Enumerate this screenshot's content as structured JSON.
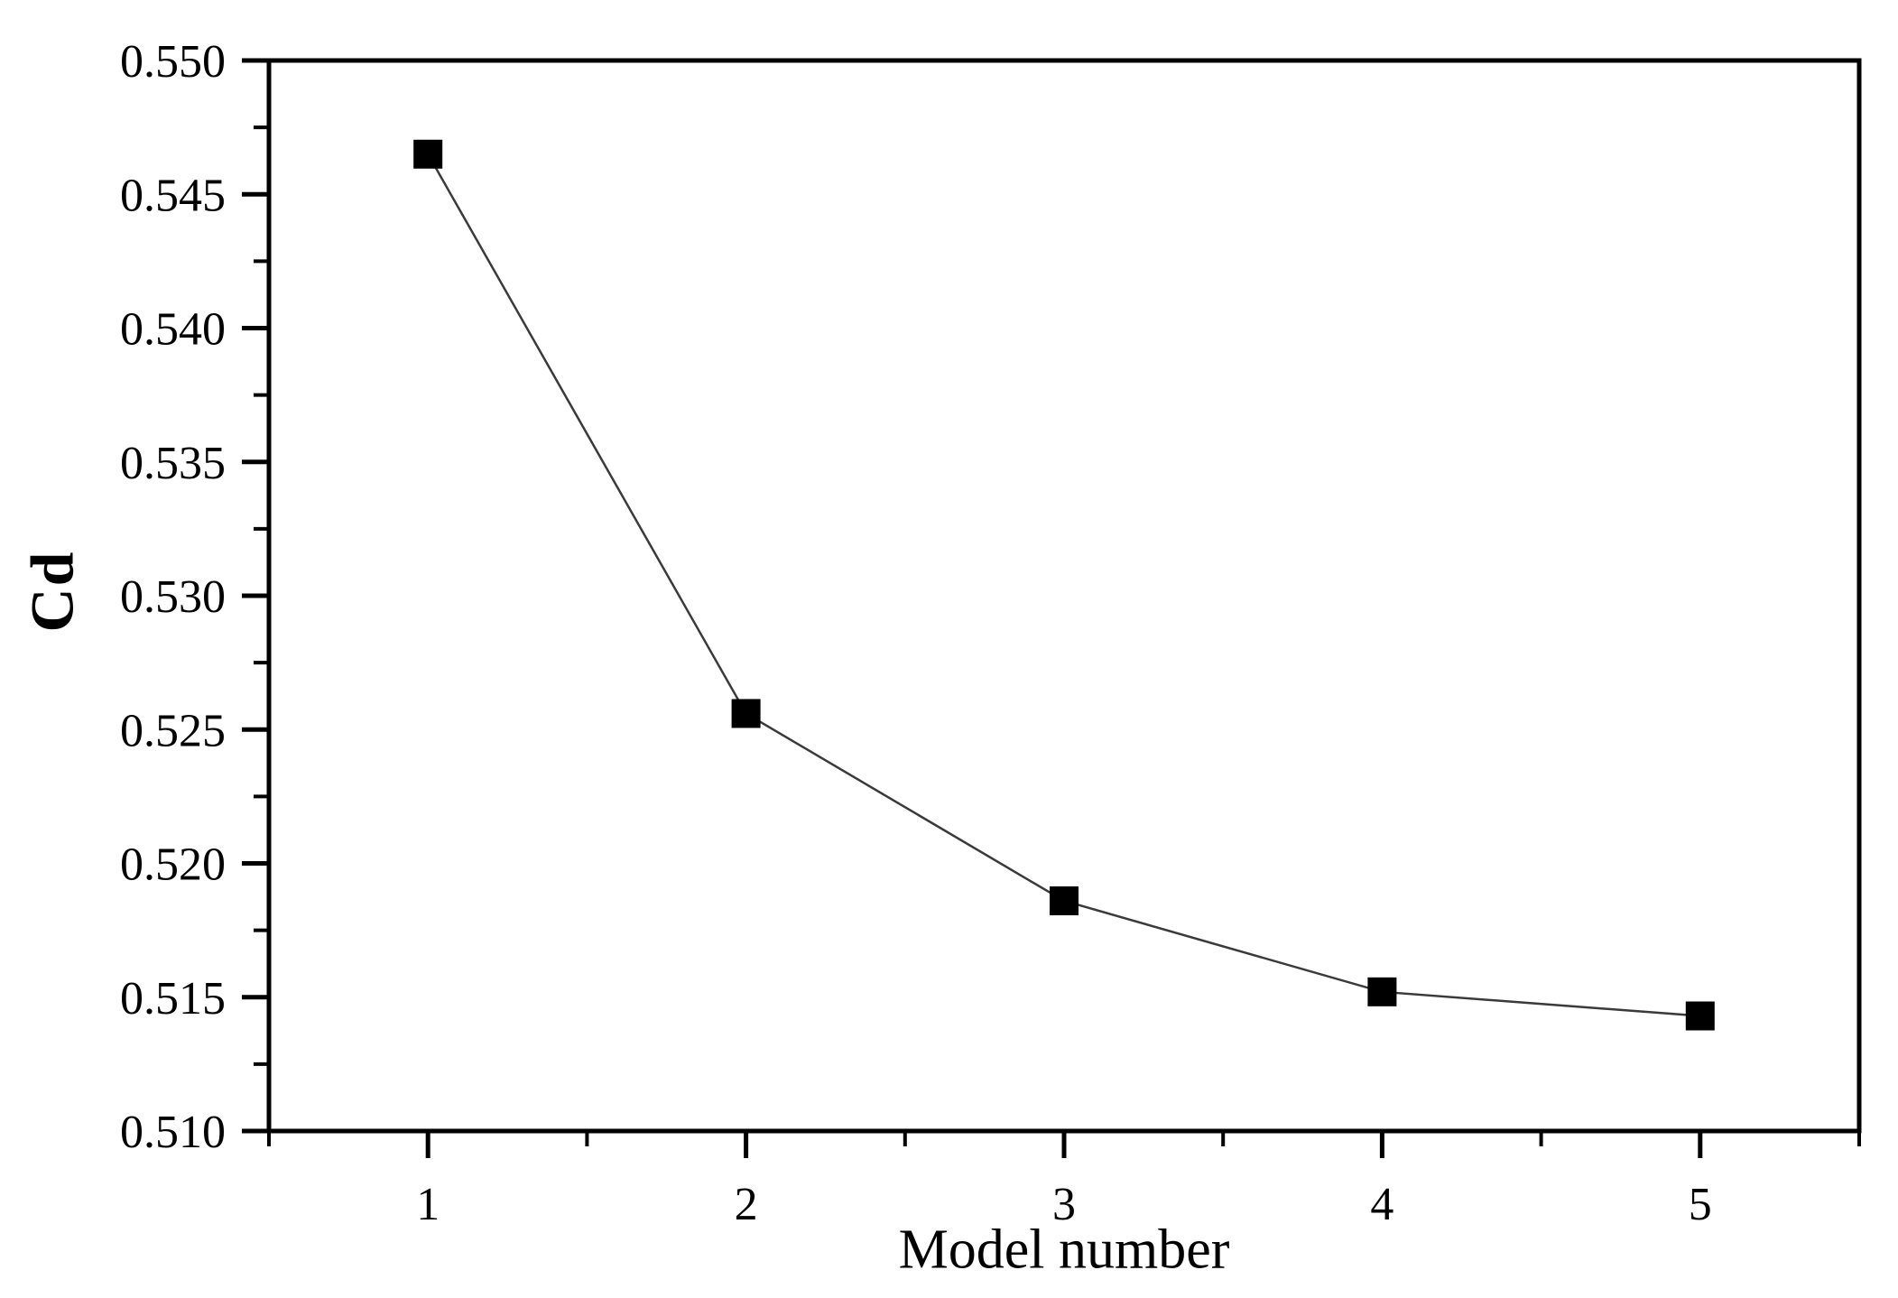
{
  "figure": {
    "background_color": "#ffffff",
    "frame_color": "#000000",
    "text_color": "#000000"
  },
  "chart_data": {
    "type": "line",
    "title": "",
    "xlabel": "Model number",
    "ylabel": "Cd",
    "x": [
      1,
      2,
      3,
      4,
      5
    ],
    "y": [
      0.5465,
      0.5256,
      0.5186,
      0.5152,
      0.5143
    ],
    "marker": "filled-square",
    "marker_color": "#000000",
    "line_color": "#3a3a3a",
    "xlim": [
      0.5,
      5.5
    ],
    "ylim": [
      0.51,
      0.55
    ],
    "x_major_ticks": [
      1,
      2,
      3,
      4,
      5
    ],
    "x_tick_labels": [
      "1",
      "2",
      "3",
      "4",
      "5"
    ],
    "x_minor_ticks": [
      0.5,
      1.5,
      2.5,
      3.5,
      4.5,
      5.5
    ],
    "y_major_ticks": [
      0.51,
      0.515,
      0.52,
      0.525,
      0.53,
      0.535,
      0.54,
      0.545,
      0.55
    ],
    "y_tick_labels": [
      "0.510",
      "0.515",
      "0.520",
      "0.525",
      "0.530",
      "0.535",
      "0.540",
      "0.545",
      "0.550"
    ],
    "y_minor_ticks": [
      0.5125,
      0.5175,
      0.5225,
      0.5275,
      0.5325,
      0.5375,
      0.5425,
      0.5475
    ],
    "grid": false,
    "legend": null,
    "frame": "closed-box",
    "tick_direction": "out"
  }
}
